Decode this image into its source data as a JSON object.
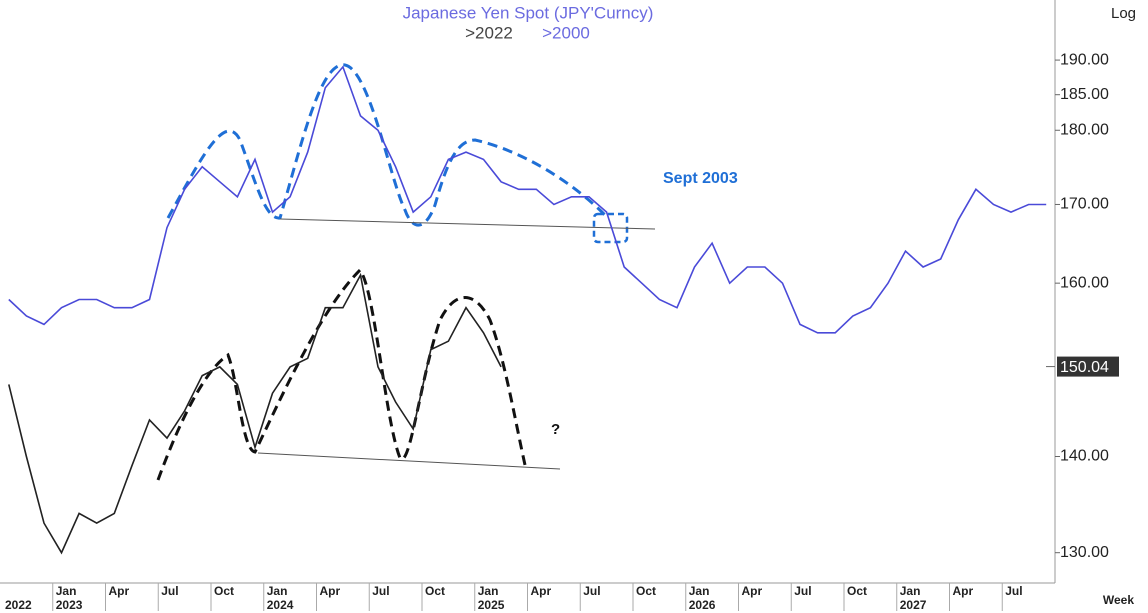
{
  "chart_data": {
    "type": "line",
    "title": "Japanese Yen Spot (JPY'Curncy)",
    "scale_label": "Log",
    "x_axis_label": "Week",
    "log_scale": true,
    "categories": [
      null,
      null,
      null,
      "Jan",
      null,
      null,
      "Apr",
      null,
      null,
      "Jul",
      null,
      null,
      "Oct",
      null,
      null,
      "Jan",
      null,
      null,
      "Apr",
      null,
      null,
      "Jul",
      null,
      null,
      "Oct",
      null,
      null,
      "Jan",
      null,
      null,
      "Apr",
      null,
      null,
      "Jul",
      null,
      null,
      "Oct",
      null,
      null,
      "Jan",
      null,
      null,
      "Apr",
      null,
      null,
      "Jul",
      null,
      null,
      "Oct",
      null,
      null,
      "Jan",
      null,
      null,
      "Apr",
      null,
      null,
      "Jul",
      null,
      null
    ],
    "year_labels": [
      "2022",
      "2023",
      "2024",
      "2025",
      "2026",
      "2027"
    ],
    "series": [
      {
        "name": ">2022",
        "color": "#222222",
        "values": [
          148,
          140,
          133,
          130,
          134,
          133,
          134,
          139,
          144,
          142,
          145,
          149,
          150,
          148,
          141,
          147,
          150,
          151,
          157,
          157,
          161,
          150,
          146,
          143,
          152,
          153,
          157,
          154,
          150,
          null,
          null,
          null,
          null,
          null,
          null,
          null,
          null,
          null,
          null,
          null,
          null,
          null,
          null,
          null,
          null,
          null,
          null,
          null,
          null,
          null,
          null,
          null,
          null,
          null,
          null,
          null,
          null,
          null,
          null,
          null
        ]
      },
      {
        "name": ">2000",
        "color": "#4a4ad8",
        "values": [
          158,
          156,
          155,
          157,
          158,
          158,
          157,
          157,
          158,
          167,
          172,
          175,
          173,
          171,
          176,
          169,
          171,
          177,
          186,
          189,
          182,
          180,
          175,
          169,
          171,
          176,
          177,
          176,
          173,
          172,
          172,
          170,
          171,
          171,
          169,
          162,
          160,
          158,
          157,
          162,
          165,
          160,
          162,
          162,
          160,
          155,
          154,
          154,
          156,
          157,
          160,
          164,
          162,
          163,
          168,
          172,
          170,
          169,
          170,
          170
        ]
      }
    ],
    "ylim": [
      127,
      199
    ],
    "yticks": [
      {
        "value": 130,
        "label": "130.00"
      },
      {
        "value": 140,
        "label": "140.00"
      },
      {
        "value": 160,
        "label": "160.00"
      },
      {
        "value": 170,
        "label": "170.00"
      },
      {
        "value": 180,
        "label": "180.00"
      },
      {
        "value": 185,
        "label": "185.00"
      },
      {
        "value": 190,
        "label": "190.00"
      }
    ],
    "last_value": {
      "value": 150.04,
      "label": "150.04"
    },
    "annotations": [
      "Sept 2003",
      "?"
    ]
  }
}
